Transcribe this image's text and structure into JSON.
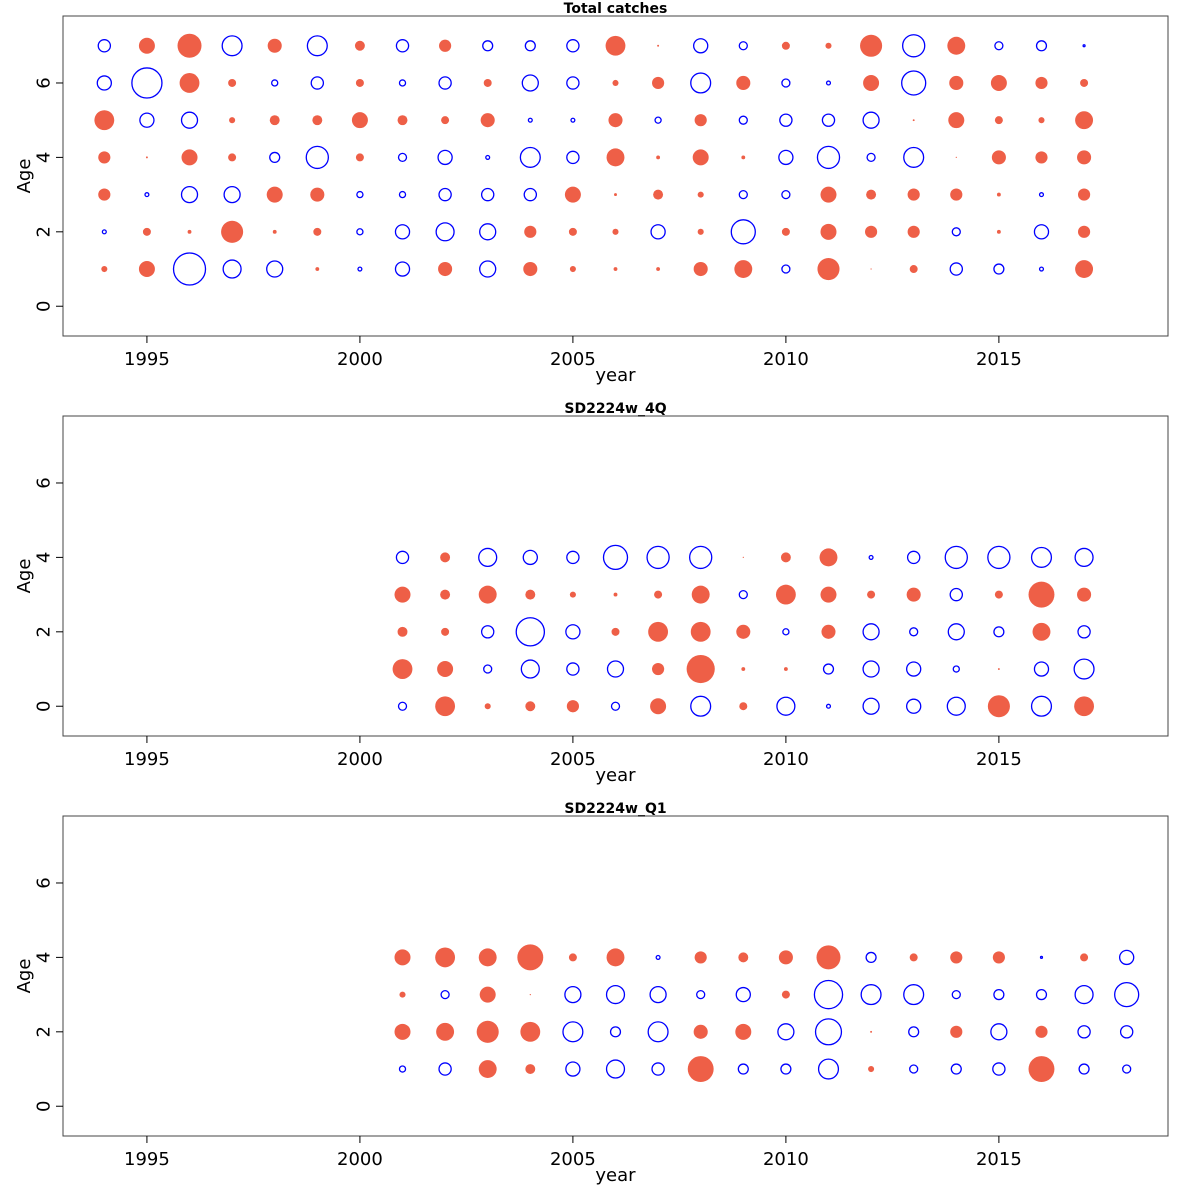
{
  "chart_data": [
    {
      "type": "scatter",
      "subtype": "bubble",
      "title": "Total catches",
      "xlabel": "year",
      "ylabel": "Age",
      "xlim": [
        1993.03,
        2018.97
      ],
      "ylim": [
        -0.8,
        7.8
      ],
      "xticks": [
        1995,
        2000,
        2005,
        2010,
        2015
      ],
      "yticks": [
        0,
        2,
        4,
        6
      ],
      "grid": false,
      "encoding": "positive = filled red circle, negative = open blue circle, radius proportional to |value|",
      "years": [
        1994,
        1995,
        1996,
        1997,
        1998,
        1999,
        2000,
        2001,
        2002,
        2003,
        2004,
        2005,
        2006,
        2007,
        2008,
        2009,
        2010,
        2011,
        2012,
        2013,
        2014,
        2015,
        2016,
        2017
      ],
      "ages": [
        7,
        6,
        5,
        4,
        3,
        2,
        1
      ],
      "values": [
        [
          -0.38,
          0.5,
          0.75,
          -0.62,
          0.44,
          -0.62,
          0.31,
          -0.38,
          0.38,
          -0.31,
          -0.31,
          -0.38,
          0.62,
          0.06,
          -0.44,
          -0.25,
          0.25,
          0.19,
          0.69,
          -0.69,
          0.56,
          -0.25,
          -0.31,
          -0.06
        ],
        [
          -0.44,
          -0.94,
          0.62,
          0.25,
          -0.19,
          -0.38,
          0.25,
          -0.19,
          -0.38,
          0.25,
          -0.5,
          -0.38,
          0.19,
          0.38,
          -0.62,
          0.44,
          -0.25,
          -0.12,
          0.5,
          -0.75,
          0.44,
          0.5,
          0.38,
          0.25
        ],
        [
          0.62,
          -0.44,
          -0.5,
          0.19,
          0.31,
          0.31,
          0.5,
          0.31,
          0.25,
          0.44,
          -0.12,
          -0.12,
          0.44,
          -0.19,
          0.38,
          -0.25,
          -0.38,
          -0.38,
          -0.5,
          0.06,
          0.5,
          0.25,
          0.19,
          0.56
        ],
        [
          0.38,
          0.06,
          0.5,
          0.25,
          -0.31,
          -0.69,
          0.25,
          -0.25,
          -0.44,
          -0.12,
          -0.62,
          -0.38,
          0.56,
          0.12,
          0.5,
          0.12,
          -0.44,
          -0.69,
          -0.25,
          -0.62,
          0.03,
          0.44,
          0.38,
          0.44
        ],
        [
          0.38,
          -0.12,
          -0.5,
          -0.5,
          0.5,
          0.44,
          -0.19,
          -0.19,
          -0.38,
          -0.38,
          -0.38,
          0.5,
          0.09,
          0.31,
          0.19,
          -0.25,
          -0.25,
          0.5,
          0.31,
          0.38,
          0.38,
          0.12,
          -0.12,
          0.38
        ],
        [
          -0.12,
          0.25,
          0.12,
          0.69,
          0.12,
          0.25,
          -0.19,
          -0.44,
          -0.56,
          -0.5,
          0.38,
          0.25,
          0.19,
          -0.44,
          0.19,
          -0.75,
          0.25,
          0.5,
          0.38,
          0.38,
          -0.25,
          0.12,
          -0.44,
          0.38
        ],
        [
          0.19,
          0.5,
          -1.0,
          -0.56,
          -0.5,
          0.12,
          -0.12,
          -0.44,
          0.44,
          -0.5,
          0.44,
          0.19,
          0.12,
          0.12,
          0.44,
          0.56,
          -0.25,
          0.69,
          0.03,
          0.25,
          -0.38,
          -0.31,
          -0.12,
          0.56
        ]
      ]
    },
    {
      "type": "scatter",
      "subtype": "bubble",
      "title": "SD2224w_4Q",
      "xlabel": "year",
      "ylabel": "Age",
      "xlim": [
        1993.03,
        2018.97
      ],
      "ylim": [
        -0.8,
        7.8
      ],
      "xticks": [
        1995,
        2000,
        2005,
        2010,
        2015
      ],
      "yticks": [
        0,
        2,
        4,
        6
      ],
      "grid": false,
      "encoding": "positive = filled red circle, negative = open blue circle, radius proportional to |value|",
      "years": [
        2001,
        2002,
        2003,
        2004,
        2005,
        2006,
        2007,
        2008,
        2009,
        2010,
        2011,
        2012,
        2013,
        2014,
        2015,
        2016,
        2017
      ],
      "ages": [
        4,
        3,
        2,
        1,
        0
      ],
      "values": [
        [
          -0.38,
          0.31,
          -0.56,
          -0.44,
          -0.38,
          -0.75,
          -0.69,
          -0.69,
          0.03,
          0.31,
          0.56,
          -0.12,
          -0.38,
          -0.69,
          -0.69,
          -0.62,
          -0.56
        ],
        [
          0.5,
          0.31,
          0.56,
          0.31,
          0.19,
          0.12,
          0.25,
          0.56,
          -0.25,
          0.62,
          0.5,
          0.25,
          0.44,
          -0.38,
          0.25,
          0.81,
          0.44
        ],
        [
          0.31,
          0.25,
          -0.38,
          -0.88,
          -0.44,
          0.25,
          0.62,
          0.62,
          0.44,
          -0.19,
          0.44,
          -0.5,
          -0.25,
          -0.5,
          -0.31,
          0.56,
          -0.38
        ],
        [
          0.62,
          0.5,
          -0.25,
          -0.56,
          -0.38,
          -0.5,
          0.38,
          0.88,
          0.12,
          0.12,
          -0.31,
          -0.5,
          -0.44,
          -0.19,
          0.06,
          -0.44,
          -0.62
        ],
        [
          -0.25,
          0.62,
          0.19,
          0.31,
          0.38,
          -0.25,
          0.5,
          -0.62,
          0.25,
          -0.56,
          -0.12,
          -0.5,
          -0.44,
          -0.56,
          0.69,
          -0.62,
          0.62
        ]
      ]
    },
    {
      "type": "scatter",
      "subtype": "bubble",
      "title": "SD2224w_Q1",
      "xlabel": "year",
      "ylabel": "Age",
      "xlim": [
        1993.03,
        2018.97
      ],
      "ylim": [
        -0.8,
        7.8
      ],
      "xticks": [
        1995,
        2000,
        2005,
        2010,
        2015
      ],
      "yticks": [
        0,
        2,
        4,
        6
      ],
      "grid": false,
      "encoding": "positive = filled red circle, negative = open blue circle, radius proportional to |value|",
      "years": [
        2001,
        2002,
        2003,
        2004,
        2005,
        2006,
        2007,
        2008,
        2009,
        2010,
        2011,
        2012,
        2013,
        2014,
        2015,
        2016,
        2017,
        2018
      ],
      "ages": [
        4,
        3,
        2,
        1
      ],
      "values": [
        [
          0.5,
          0.62,
          0.56,
          0.81,
          0.25,
          0.56,
          -0.12,
          0.38,
          0.31,
          0.44,
          0.75,
          -0.31,
          0.25,
          0.38,
          0.38,
          -0.06,
          0.25,
          -0.44
        ],
        [
          0.19,
          -0.25,
          0.5,
          0.03,
          -0.5,
          -0.56,
          -0.5,
          -0.25,
          -0.44,
          0.25,
          -0.88,
          -0.62,
          -0.62,
          -0.25,
          -0.31,
          -0.31,
          -0.56,
          -0.75
        ],
        [
          0.5,
          0.56,
          0.69,
          0.62,
          -0.62,
          -0.31,
          -0.62,
          0.44,
          0.5,
          -0.5,
          -0.81,
          0.06,
          -0.31,
          0.38,
          -0.5,
          0.38,
          -0.38,
          -0.38
        ],
        [
          -0.19,
          -0.38,
          0.56,
          0.31,
          -0.44,
          -0.56,
          -0.38,
          0.81,
          -0.31,
          -0.31,
          -0.62,
          0.19,
          -0.25,
          -0.31,
          -0.38,
          0.81,
          -0.31,
          -0.25
        ]
      ]
    }
  ],
  "colors": {
    "positive": "#EE5F47",
    "negative": "#0000FF",
    "axis": "#000000",
    "frame": "#444444"
  }
}
